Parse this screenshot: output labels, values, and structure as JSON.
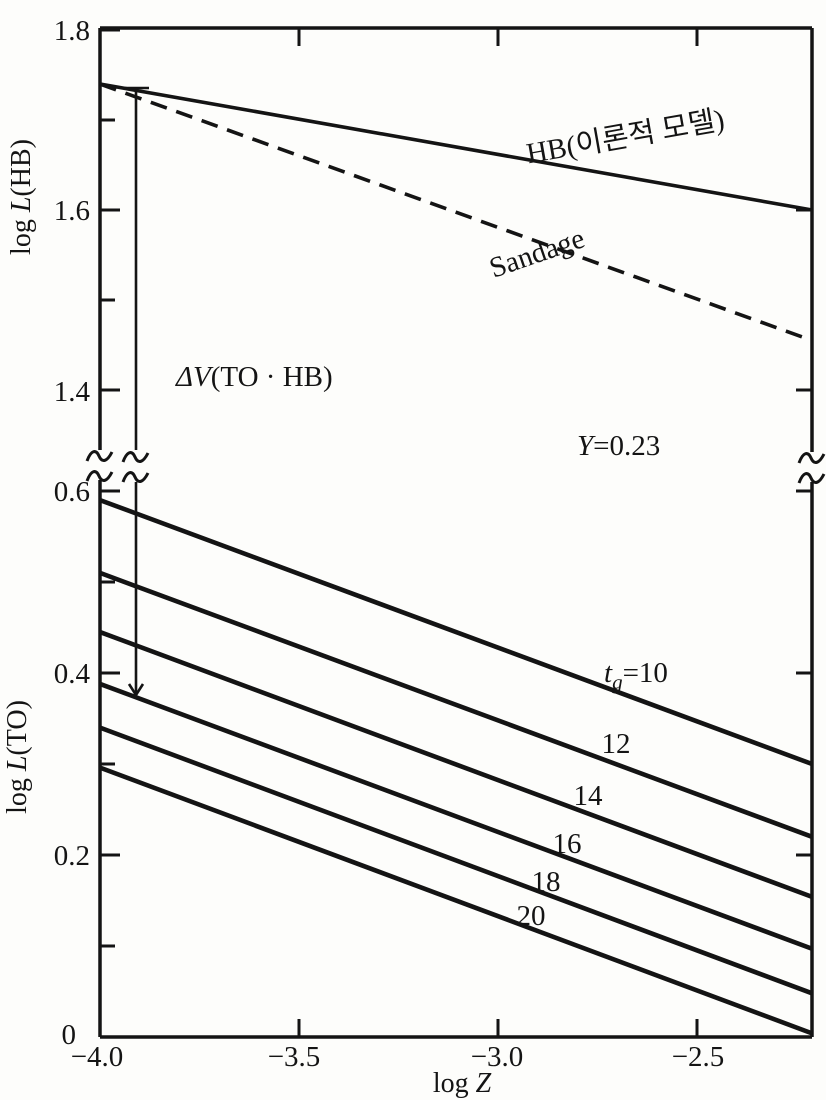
{
  "figure": {
    "x_axis": {
      "pre": "log ",
      "var": "Z",
      "ticks": [
        "−4.0",
        "−3.5",
        "−3.0",
        "−2.5"
      ]
    },
    "y_top": {
      "pre": "log ",
      "var": "L",
      "post": "(HB)",
      "ticks": [
        "1.8",
        "1.6",
        "1.4"
      ]
    },
    "y_bottom": {
      "pre": "log ",
      "var": "L",
      "post": "(TO)",
      "ticks": [
        "0.6",
        "0.4",
        "0.2",
        "0"
      ]
    },
    "ann": {
      "hb": "HB(이론적 모델)",
      "sandage": "Sandage",
      "dv_sym": "ΔV",
      "dv_rest": "(TO · HB)",
      "y_var": "Y",
      "y_rest": "=0.23",
      "tg_t": "t",
      "tg_g": "g",
      "tg_eq": "=10"
    }
  },
  "chart_data": {
    "type": "line",
    "xlabel": "log Z",
    "x_range": [
      -4.0,
      -2.21
    ],
    "x_ticks": [
      -4.0,
      -3.5,
      -3.0,
      -2.5
    ],
    "grid": false,
    "axis_break": "y axis broken between log L = 0.6 and log L = 1.4 (squiggle marks on left axis, right axis and marker line)",
    "panels": [
      {
        "id": "top",
        "ylabel": "log L(HB)",
        "y_ticks_labeled": [
          1.8,
          1.6,
          1.4
        ],
        "y_ticks_minor": [
          1.7,
          1.5
        ],
        "series": [
          {
            "name": "HB theoretical model",
            "label": "HB(이론적 모델)",
            "style": "solid",
            "x": [
              -4.0,
              -2.21
            ],
            "y": [
              1.74,
              1.6
            ]
          },
          {
            "name": "Sandage",
            "label": "Sandage",
            "style": "dashed",
            "x": [
              -4.0,
              -2.21
            ],
            "y": [
              1.74,
              1.455
            ]
          }
        ]
      },
      {
        "id": "bottom",
        "ylabel": "log L(TO)",
        "y_ticks_labeled": [
          0.6,
          0.4,
          0.2,
          0
        ],
        "y_ticks_minor": [
          0.5,
          0.3,
          0.1
        ],
        "series": [
          {
            "name": "tg=10",
            "label": "tg=10",
            "style": "solid",
            "x": [
              -4.0,
              -2.21
            ],
            "y": [
              0.59,
              0.3
            ]
          },
          {
            "name": "tg=12",
            "label": "12",
            "style": "solid",
            "x": [
              -4.0,
              -2.21
            ],
            "y": [
              0.51,
              0.22
            ]
          },
          {
            "name": "tg=14",
            "label": "14",
            "style": "solid",
            "x": [
              -4.0,
              -2.21
            ],
            "y": [
              0.445,
              0.154
            ]
          },
          {
            "name": "tg=16",
            "label": "16",
            "style": "solid",
            "x": [
              -4.0,
              -2.21
            ],
            "y": [
              0.388,
              0.097
            ]
          },
          {
            "name": "tg=18",
            "label": "18",
            "style": "solid",
            "x": [
              -4.0,
              -2.21
            ],
            "y": [
              0.34,
              0.048
            ]
          },
          {
            "name": "tg=20",
            "label": "20",
            "style": "solid",
            "x": [
              -4.0,
              -2.21
            ],
            "y": [
              0.296,
              0.004
            ]
          }
        ]
      }
    ],
    "annotations": [
      {
        "text": "ΔV(TO·HB)",
        "note": "vertical marker at log Z ≈ −3.91 from HB line down to TO lines"
      },
      {
        "text": "Y=0.23"
      }
    ]
  }
}
